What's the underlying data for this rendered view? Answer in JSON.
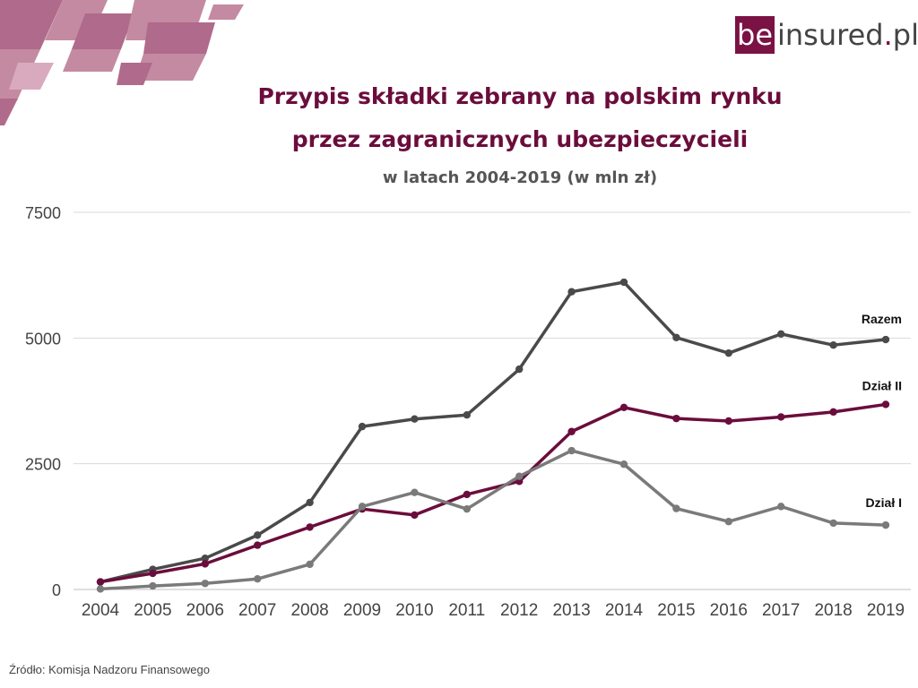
{
  "logo": {
    "part1": "be",
    "part2": "insured",
    "part3": ".",
    "part4": "pl"
  },
  "header": {
    "title_line1": "Przypis składki zebrany na polskim rynku",
    "title_line2": "przez zagranicznych ubezpieczycieli",
    "subtitle": "w latach 2004-2019 (w mln zł)"
  },
  "footer": {
    "source": "Źródło: Komisja Nadzoru Finansowego"
  },
  "colors": {
    "accent": "#7a1244",
    "razem": "#4a4a4a",
    "dzial_ii": "#6b0d3c",
    "dzial_i": "#7a7a7a",
    "grid": "#d9d9d9",
    "decor_light": "#c48aa2",
    "decor_dark": "#b06a8c"
  },
  "chart_data": {
    "type": "line",
    "title": "Przypis składki zebrany na polskim rynku przez zagranicznych ubezpieczycieli",
    "subtitle": "w latach 2004-2019 (w mln zł)",
    "xlabel": "",
    "ylabel": "",
    "categories": [
      "2004",
      "2005",
      "2006",
      "2007",
      "2008",
      "2009",
      "2010",
      "2011",
      "2012",
      "2013",
      "2014",
      "2015",
      "2016",
      "2017",
      "2018",
      "2019"
    ],
    "ylim": [
      0,
      7500
    ],
    "yticks": [
      0,
      2500,
      5000,
      7500
    ],
    "grid": true,
    "legend": "inline labels at right end of lines",
    "series": [
      {
        "name": "Razem",
        "color": "#4a4a4a",
        "values": [
          150,
          400,
          620,
          1080,
          1730,
          3240,
          3390,
          3470,
          4380,
          5920,
          6110,
          5010,
          4700,
          5080,
          4860,
          4970
        ]
      },
      {
        "name": "Dział II",
        "color": "#6b0d3c",
        "values": [
          150,
          320,
          510,
          880,
          1240,
          1600,
          1480,
          1890,
          2150,
          3140,
          3620,
          3400,
          3350,
          3430,
          3530,
          3680
        ]
      },
      {
        "name": "Dział I",
        "color": "#7a7a7a",
        "values": [
          10,
          70,
          120,
          210,
          500,
          1650,
          1930,
          1600,
          2250,
          2760,
          2490,
          1610,
          1350,
          1650,
          1320,
          1280
        ]
      }
    ]
  }
}
